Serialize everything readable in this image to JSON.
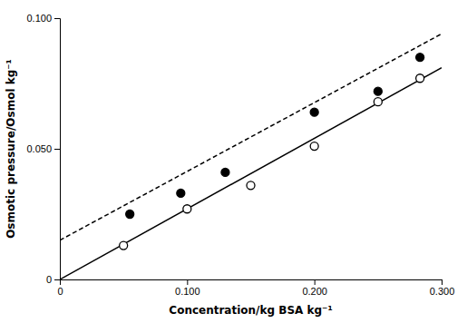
{
  "chart_data": {
    "type": "scatter",
    "xlabel": "Concentration/kg BSA kg⁻¹",
    "ylabel": "Osmotic pressure/Osmol kg⁻¹",
    "xlim": [
      0,
      0.3
    ],
    "ylim": [
      0,
      0.1
    ],
    "xticks": [
      0,
      {
        "value": 0.1,
        "label": "0.100"
      },
      {
        "value": 0.2,
        "label": "0.200"
      },
      {
        "value": 0.3,
        "label": "0.300"
      }
    ],
    "yticks": [
      0,
      {
        "value": 0.05,
        "label": "0.050"
      },
      {
        "value": 0.1,
        "label": "0.100"
      }
    ],
    "grid": false,
    "series": [
      {
        "type": "line",
        "line_style": "solid",
        "color": "#000000",
        "x": [
          0.0,
          0.3
        ],
        "values": [
          0.0,
          0.081
        ]
      },
      {
        "type": "line",
        "line_style": "dashed",
        "color": "#000000",
        "x": [
          0.0,
          0.3
        ],
        "values": [
          0.015,
          0.094
        ]
      },
      {
        "type": "scatter",
        "marker": "open-circle",
        "color": "#000000",
        "x": [
          0.05,
          0.1,
          0.15,
          0.2,
          0.25,
          0.283
        ],
        "values": [
          0.013,
          0.027,
          0.036,
          0.051,
          0.068,
          0.077
        ]
      },
      {
        "type": "scatter",
        "marker": "filled-circle",
        "color": "#000000",
        "x": [
          0.055,
          0.095,
          0.13,
          0.2,
          0.25,
          0.283
        ],
        "values": [
          0.025,
          0.033,
          0.041,
          0.064,
          0.072,
          0.085
        ]
      }
    ]
  }
}
